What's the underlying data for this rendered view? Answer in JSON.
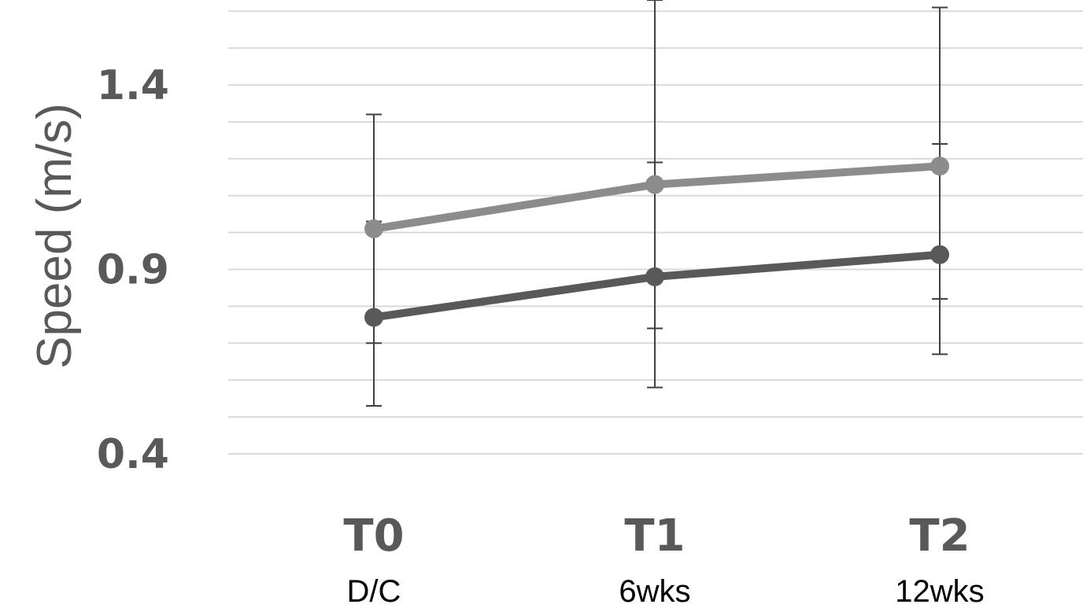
{
  "chart_data": {
    "type": "line",
    "title": "",
    "xlabel": "",
    "ylabel": "Speed (m/s)",
    "categories": [
      "T0",
      "T1",
      "T2"
    ],
    "category_sublabels": [
      "D/C",
      "6wks",
      "12wks"
    ],
    "y_ticks": [
      "0.4",
      "0.9",
      "1.4"
    ],
    "ylim": [
      0.4,
      1.6
    ],
    "minor_gridline_step": 0.1,
    "grid": true,
    "legend": "none",
    "series": [
      {
        "values": [
          1.01,
          1.13,
          1.18
        ],
        "error": [
          [
            0.7,
            1.32
          ],
          [
            0.74,
            1.63
          ],
          [
            0.82,
            1.61
          ]
        ],
        "color": "#8c8c8c"
      },
      {
        "values": [
          0.77,
          0.88,
          0.94
        ],
        "error": [
          [
            0.53,
            1.03
          ],
          [
            0.58,
            1.19
          ],
          [
            0.67,
            1.24
          ]
        ],
        "color": "#595959"
      }
    ],
    "error_bar_color": "#404040",
    "gridline_color": "#d9d9d9"
  }
}
